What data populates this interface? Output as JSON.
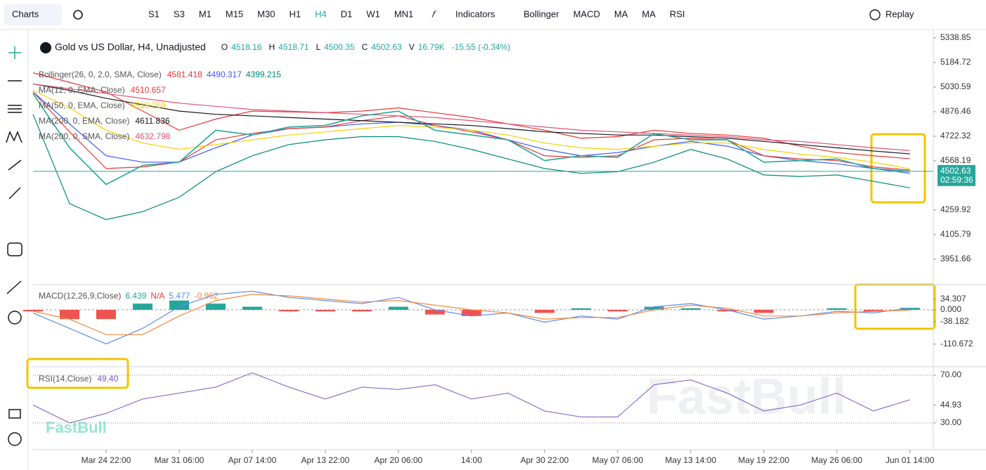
{
  "toolbar": {
    "charts": "Charts",
    "intervals": [
      "S1",
      "S3",
      "M1",
      "M15",
      "M30",
      "H1",
      "H4",
      "D1",
      "W1",
      "MN1"
    ],
    "active_interval": "H4",
    "indicators": "Indicators",
    "studies": [
      "Bollinger",
      "MACD",
      "MA",
      "MA",
      "RSI"
    ],
    "replay": "Replay"
  },
  "watermark": "FastBull",
  "chart_data": [
    {
      "type": "line",
      "title": "Gold vs US Dollar, H4, Unadjusted",
      "ohlcv": [
        {
          "label": "O",
          "value": 4518.16
        },
        {
          "label": "H",
          "value": 4518.71
        },
        {
          "label": "L",
          "value": 4500.35
        },
        {
          "label": "C",
          "value": 4502.63
        },
        {
          "label": "V",
          "value": "16.79K"
        }
      ],
      "change": "-15.55 (-0.34%)",
      "last_price": 4502.63,
      "countdown": "02:59:36",
      "x": [
        -1,
        -0.5,
        0,
        0.5,
        1,
        1.5,
        2,
        2.5,
        3,
        3.5,
        4,
        4.5,
        5,
        5.5,
        6,
        6.5,
        7,
        7.5,
        8,
        8.5,
        9,
        9.5,
        10,
        10.5,
        11
      ],
      "xlim": [
        -1,
        11.32
      ],
      "ylim": [
        3793,
        5387
      ],
      "yticks": [
        5338.85,
        5184.72,
        5030.59,
        4876.46,
        4722.32,
        4568.19,
        4259.92,
        4105.79,
        3951.66
      ],
      "color": "#26a69a",
      "values": [
        4990,
        4650,
        4420,
        4540,
        4560,
        4760,
        4730,
        4780,
        4790,
        4850,
        4880,
        4760,
        4730,
        4700,
        4570,
        4600,
        4590,
        4740,
        4700,
        4700,
        4560,
        4570,
        4580,
        4520,
        4502.63
      ],
      "bollinger": {
        "label": "Bollinger(26, 0, 2.0, SMA, Close)",
        "upper": {
          "color": "#e53935",
          "values": [
            5120,
            5060,
            5000,
            4880,
            4760,
            4830,
            4880,
            4875,
            4870,
            4880,
            4900,
            4870,
            4840,
            4800,
            4760,
            4710,
            4720,
            4760,
            4740,
            4730,
            4710,
            4660,
            4620,
            4600,
            4581.418
          ]
        },
        "middle": {
          "color": "#3d5afe",
          "values": [
            5000,
            4800,
            4600,
            4560,
            4560,
            4650,
            4730,
            4770,
            4780,
            4800,
            4810,
            4790,
            4760,
            4700,
            4640,
            4600,
            4620,
            4660,
            4690,
            4660,
            4600,
            4570,
            4550,
            4520,
            4490.317
          ]
        },
        "lower": {
          "color": "#00897b",
          "values": [
            4860,
            4300,
            4200,
            4250,
            4340,
            4500,
            4600,
            4670,
            4700,
            4720,
            4720,
            4690,
            4640,
            4580,
            4520,
            4490,
            4500,
            4560,
            4640,
            4580,
            4480,
            4470,
            4480,
            4440,
            4399.215
          ]
        }
      },
      "series": [
        {
          "name": "MA(12, 0, EMA, Close)",
          "color": "#e53935",
          "values": [
            5000,
            4750,
            4520,
            4530,
            4560,
            4700,
            4740,
            4770,
            4780,
            4820,
            4850,
            4790,
            4750,
            4700,
            4600,
            4590,
            4600,
            4700,
            4710,
            4700,
            4600,
            4580,
            4570,
            4530,
            4510.657
          ]
        },
        {
          "name": "MA(50, 0, EMA, Close)",
          "color": "#f5d000",
          "values": [
            5010,
            4900,
            4760,
            4680,
            4640,
            4670,
            4700,
            4730,
            4750,
            4770,
            4790,
            4780,
            4760,
            4730,
            4680,
            4650,
            4640,
            4660,
            4680,
            4680,
            4640,
            4610,
            4590,
            4560,
            4518.269
          ]
        },
        {
          "name": "MA(200, 0, EMA, Close)",
          "color": "#131722",
          "values": [
            5050,
            5010,
            4960,
            4920,
            4880,
            4860,
            4850,
            4840,
            4830,
            4820,
            4810,
            4800,
            4790,
            4770,
            4750,
            4740,
            4730,
            4730,
            4720,
            4710,
            4690,
            4670,
            4650,
            4630,
            4611.836
          ]
        },
        {
          "name": "MA(200, 0, SMA, Close)",
          "color": "#e0527a",
          "values": [
            5050,
            5020,
            4990,
            4960,
            4930,
            4910,
            4890,
            4880,
            4870,
            4860,
            4850,
            4840,
            4820,
            4800,
            4780,
            4760,
            4750,
            4740,
            4730,
            4720,
            4700,
            4690,
            4670,
            4650,
            4632.798
          ]
        }
      ]
    },
    {
      "type": "macd",
      "title": "MACD(12,26,9,Close)",
      "na": "N/A",
      "x": [
        -1,
        -0.5,
        0,
        0.5,
        1,
        1.5,
        2,
        2.5,
        3,
        3.5,
        4,
        4.5,
        5,
        5.5,
        6,
        6.5,
        7,
        7.5,
        8,
        8.5,
        9,
        9.5,
        10,
        10.5,
        11
      ],
      "xlim": [
        -1,
        11.32
      ],
      "ylim": [
        -183.5,
        81.5
      ],
      "yticks": [
        34.307,
        {
          "value": 0,
          "label": "0.000"
        },
        -38.182,
        -110.672
      ],
      "histogram": {
        "up_color": "#26a69a",
        "down_color": "#ef5350",
        "values": [
          -5,
          -30,
          -30,
          20,
          30,
          20,
          10,
          -5,
          -5,
          -5,
          10,
          -15,
          -20,
          0,
          -10,
          5,
          -5,
          10,
          5,
          -5,
          -10,
          0,
          5,
          -5,
          6.439
        ]
      },
      "series": [
        {
          "color": "#5b8def",
          "values": [
            -10,
            -60,
            -110,
            -60,
            10,
            50,
            60,
            40,
            30,
            20,
            40,
            0,
            -20,
            -10,
            -40,
            -20,
            -30,
            10,
            20,
            0,
            -30,
            -20,
            -5,
            -10,
            5.477
          ]
        },
        {
          "color": "#f58a3c",
          "values": [
            -5,
            -30,
            -80,
            -80,
            -20,
            30,
            50,
            45,
            35,
            25,
            30,
            15,
            0,
            -10,
            -30,
            -25,
            -25,
            0,
            15,
            5,
            -20,
            -20,
            -10,
            -5,
            -0.962
          ]
        }
      ]
    },
    {
      "type": "rsi",
      "title": "RSI(14,Close)",
      "x": [
        -1,
        -0.5,
        0,
        0.5,
        1,
        1.5,
        2,
        2.5,
        3,
        3.5,
        4,
        4.5,
        5,
        5.5,
        6,
        6.5,
        7,
        7.5,
        8,
        8.5,
        9,
        9.5,
        10,
        10.5,
        11
      ],
      "xlim": [
        -1,
        11.32
      ],
      "ylim": [
        7.65,
        77.06
      ],
      "yticks": [
        {
          "value": 70,
          "label": "70.00"
        },
        44.93,
        {
          "value": 30,
          "label": "30.00"
        }
      ],
      "color": "#7e57c2",
      "values": [
        45,
        30,
        38,
        50,
        55,
        60,
        72,
        60,
        50,
        60,
        58,
        62,
        50,
        55,
        40,
        35,
        35,
        62,
        66,
        55,
        40,
        45,
        55,
        40,
        49.4
      ],
      "value_labels": {
        "24": "49.40"
      },
      "xticks": [
        {
          "value": 0,
          "label": "Mar 24 22:00"
        },
        {
          "value": 1,
          "label": "Mar 31 06:00"
        },
        {
          "value": 2,
          "label": "Apr 07 14:00"
        },
        {
          "value": 3,
          "label": "Apr 13 22:00"
        },
        {
          "value": 4,
          "label": "Apr 20 06:00"
        },
        {
          "value": 5,
          "label": "14:00"
        },
        {
          "value": 6,
          "label": "Apr 30 22:00"
        },
        {
          "value": 7,
          "label": "May 07 06:00"
        },
        {
          "value": 8,
          "label": "May 13 14:00"
        },
        {
          "value": 9,
          "label": "May 19 22:00"
        },
        {
          "value": 10,
          "label": "May 26 06:00"
        },
        {
          "value": 11,
          "label": "Jun 01 14:00"
        }
      ]
    }
  ]
}
